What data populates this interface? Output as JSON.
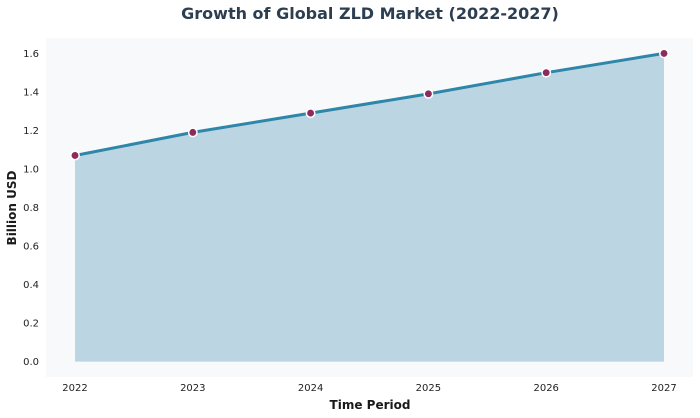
{
  "chart_data": {
    "type": "area",
    "title": "Growth of Global ZLD Market (2022-2027)",
    "xlabel": "Time Period",
    "ylabel": "Billion USD",
    "x": [
      "2022",
      "2023",
      "2024",
      "2025",
      "2026",
      "2027"
    ],
    "series": [
      {
        "values": [
          1.07,
          1.19,
          1.29,
          1.39,
          1.5,
          1.6
        ]
      }
    ],
    "ylim": [
      -0.08,
      1.68
    ],
    "yticks": [
      "0.0",
      "0.2",
      "0.4",
      "0.6",
      "0.8",
      "1.0",
      "1.2",
      "1.4",
      "1.6"
    ],
    "grid": false,
    "legend": "none",
    "colors": {
      "line": "#2e86a8",
      "fill": "#bcd5e2",
      "marker": "#8e2a5c",
      "marker_edge": "#ffffff",
      "plot_background": "#f7f9fa"
    }
  }
}
